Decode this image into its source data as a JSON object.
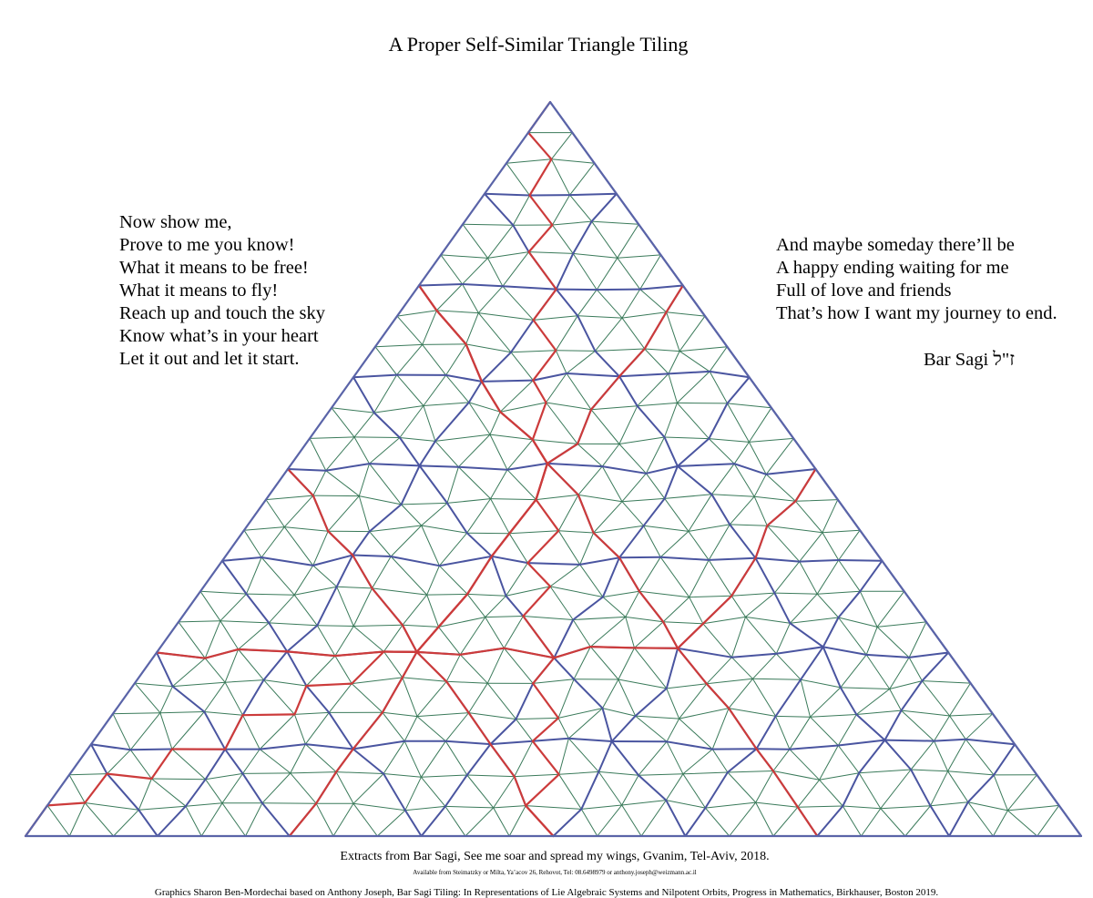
{
  "title": "A Proper Self-Similar Triangle Tiling",
  "poem_left": [
    "Now show me,",
    "Prove to me you know!",
    "What it means to be free!",
    "What it means to fly!",
    "Reach up and touch the sky",
    "Know what’s in your heart",
    "Let it out and let it start."
  ],
  "poem_right": [
    "And maybe someday there’ll be",
    "A happy ending waiting for me",
    "Full of love and friends",
    "That’s how I want my journey to end."
  ],
  "signature": "Bar Sagi ז\"ל",
  "credits": {
    "extracts": "Extracts from Bar Sagi, See me soar and spread my wings, Gvanim, Tel-Aviv, 2018.",
    "availability": "Available from Steimatzky or Milta, Ya’acov 26, Rehovot, Tel: 08.6498979 or anthony.joseph@weizmann.ac.il",
    "graphics": "Graphics Sharon Ben-Mordechai based on Anthony Joseph, Bar Sagi Tiling: In Representations of Lie Algebraic Systems and Nilpotent Orbits, Progress in Mathematics, Birkhauser, Boston 2019."
  },
  "colors": {
    "outline": "#5a64a8",
    "blue_lines": "#4a55a0",
    "red_lines": "#cc3b3b",
    "green_lines": "#3a7a5a"
  }
}
